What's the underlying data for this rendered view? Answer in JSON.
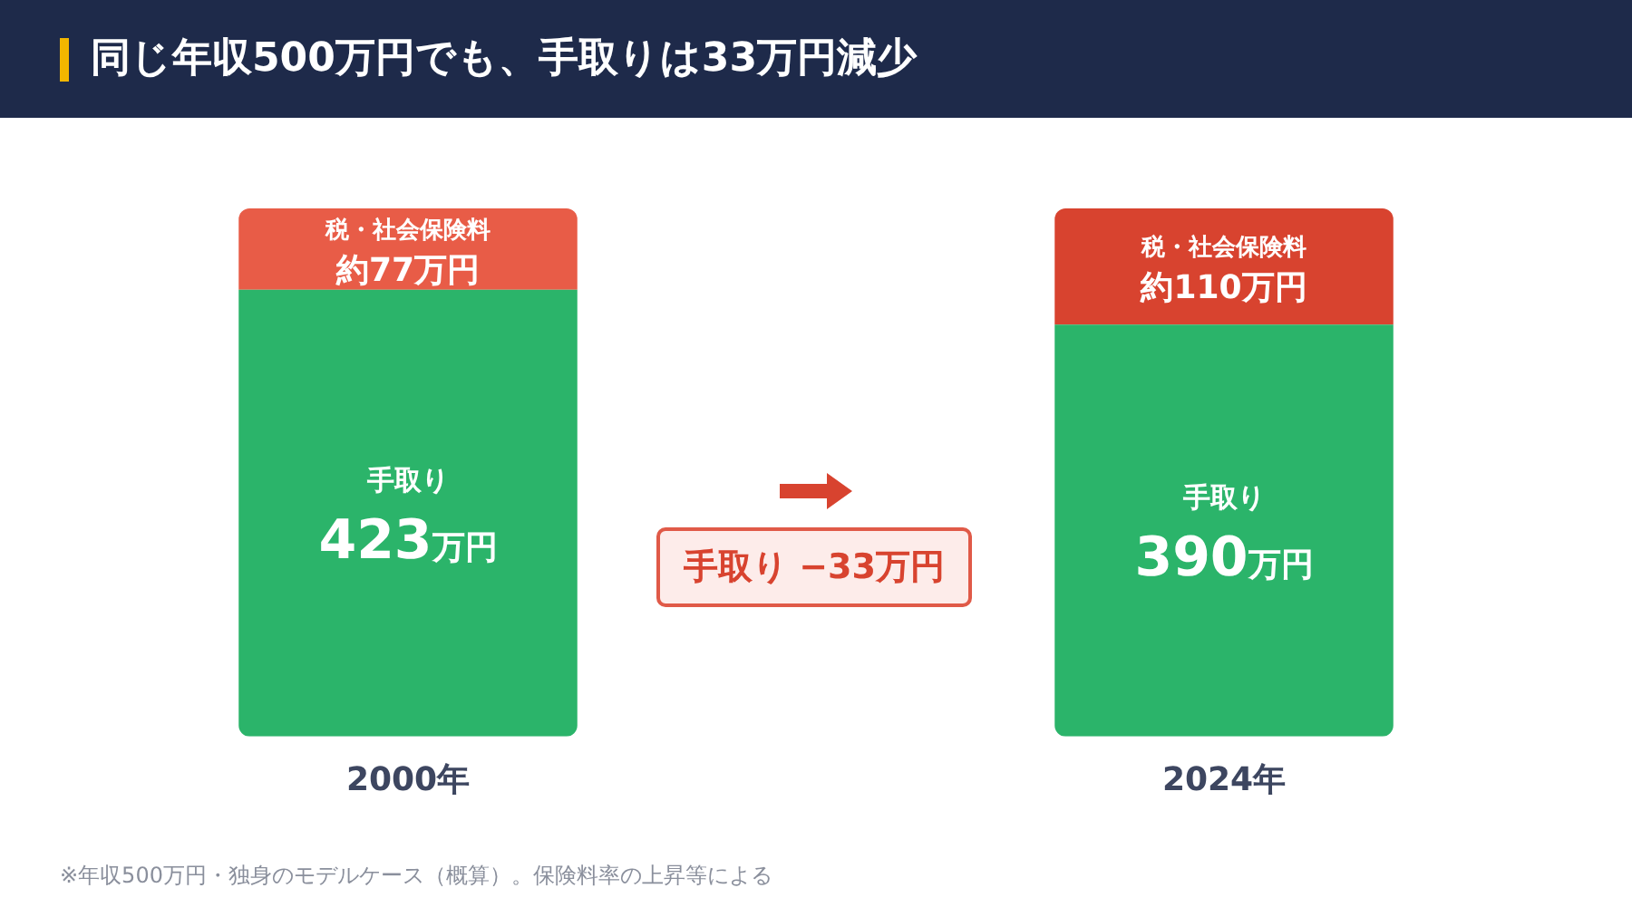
{
  "chart_data": {
    "type": "bar",
    "title": "同じ年収500万円でも、手取りは33万円減少",
    "stacked": true,
    "categories": [
      "2000年",
      "2024年"
    ],
    "series": [
      {
        "name": "手取り",
        "color": "#2bb46a",
        "values": [
          423,
          390
        ],
        "value_labels": [
          "423万円",
          "390万円"
        ]
      },
      {
        "name": "税・社会保険料",
        "colors": [
          "#e85c47",
          "#d8432f"
        ],
        "values": [
          77,
          110
        ],
        "value_labels": [
          "約77万円",
          "約110万円"
        ]
      }
    ],
    "ylim": [
      0,
      500
    ],
    "tick_labels": "x",
    "legend": false,
    "grid": false,
    "annotations": [
      "手取り −33万円",
      "※年収500万円・独身のモデルケース（概算）。保険料率の上昇等による"
    ]
  }
}
